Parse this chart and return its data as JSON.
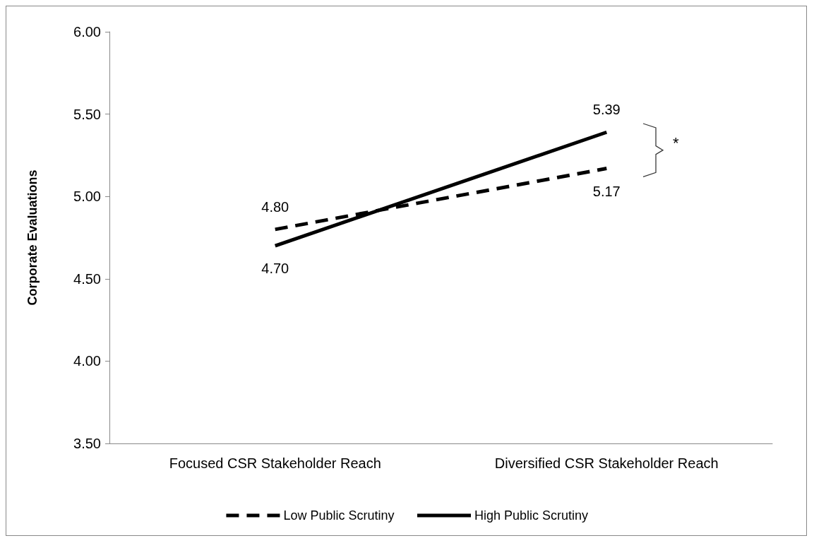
{
  "chart_data": {
    "type": "line",
    "ylabel": "Corporate Evaluations",
    "categories": [
      "Focused CSR Stakeholder Reach",
      "Diversified CSR Stakeholder Reach"
    ],
    "series": [
      {
        "name": "Low Public Scrutiny",
        "color": "#000000",
        "values": [
          4.8,
          5.17
        ],
        "value_labels": [
          "4.80",
          "5.17"
        ],
        "line_style": "dashed"
      },
      {
        "name": "High Public Scrutiny",
        "color": "#000000",
        "values": [
          4.7,
          5.39
        ],
        "value_labels": [
          "4.70",
          "5.39"
        ],
        "line_style": "solid"
      }
    ],
    "ylim": [
      3.5,
      6
    ],
    "yticks": [
      {
        "value": 3.5,
        "label": "3.50"
      },
      {
        "value": 4,
        "label": "4.00"
      },
      {
        "value": 4.5,
        "label": "4.50"
      },
      {
        "value": 5,
        "label": "5.00"
      },
      {
        "value": 5.5,
        "label": "5.50"
      },
      {
        "value": 6,
        "label": "6.00"
      }
    ],
    "annotations": [
      "*"
    ],
    "grid": false,
    "legend": "bottom",
    "marker": "none"
  }
}
